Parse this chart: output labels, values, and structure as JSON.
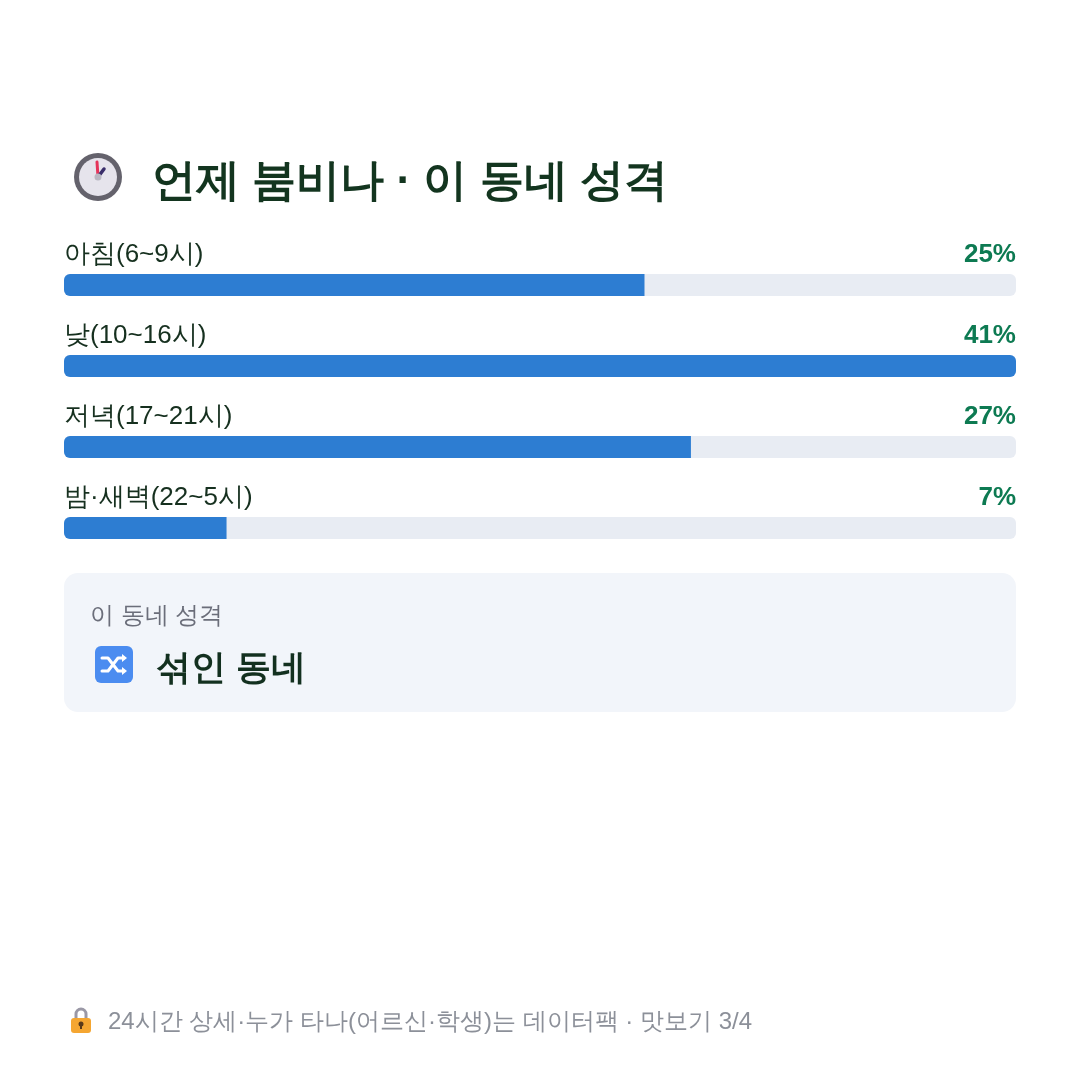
{
  "chart_data": {
    "type": "bar",
    "orientation": "horizontal",
    "title": "언제 붐비나 · 이 동네 성격",
    "categories": [
      "아침(6~9시)",
      "낮(10~16시)",
      "저녁(17~21시)",
      "밤·새벽(22~5시)"
    ],
    "values": [
      25,
      41,
      27,
      7
    ],
    "value_labels": [
      "25%",
      "41%",
      "27%",
      "7%"
    ],
    "color": "#2d7dd2",
    "annotations": [
      "이 동네 성격",
      "섞인 동네",
      "24시간 상세·누가 타나(어르신·학생)는 데이터팩 · 맛보기 3/4"
    ]
  }
}
